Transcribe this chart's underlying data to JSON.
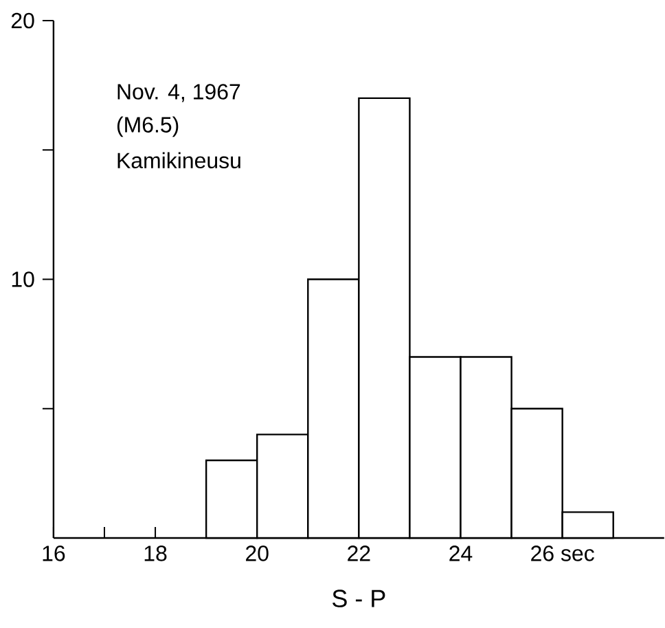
{
  "chart_data": {
    "type": "histogram",
    "xlabel": "S - P",
    "annotations": [
      "Nov. 4, 1967",
      "(M6.5)",
      "Kamikineusu"
    ],
    "bins": [
      19,
      20,
      21,
      22,
      23,
      24,
      25,
      26,
      27
    ],
    "values": [
      3,
      4,
      10,
      17,
      7,
      7,
      5,
      1
    ],
    "xlim": [
      16,
      28
    ],
    "ylim": [
      0,
      20
    ],
    "xticks": [
      16,
      {
        "value": 17,
        "label": null
      },
      18,
      20,
      22,
      24,
      {
        "value": 26,
        "label": "26 sec"
      }
    ],
    "yticks": [
      {
        "value": 5,
        "label": null
      },
      10,
      {
        "value": 15,
        "label": null
      },
      20
    ]
  }
}
